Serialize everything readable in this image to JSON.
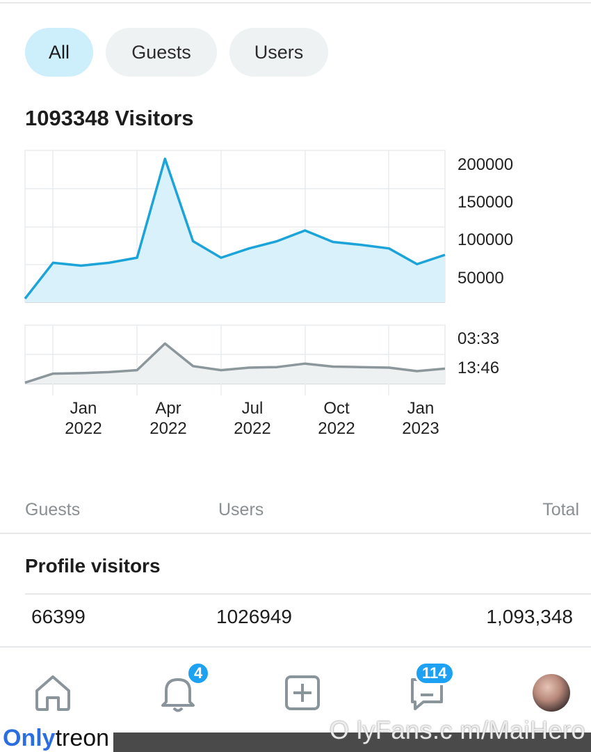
{
  "filters": {
    "all": "All",
    "guests": "Guests",
    "users": "Users",
    "active": "all"
  },
  "visitors_title": "1093348 Visitors",
  "chart_data": [
    {
      "type": "area",
      "title": "",
      "x": [
        "2021-11",
        "2021-12",
        "2022-01",
        "2022-02",
        "2022-03",
        "2022-04",
        "2022-05",
        "2022-06",
        "2022-07",
        "2022-08",
        "2022-09",
        "2022-10",
        "2022-11",
        "2022-12",
        "2023-01",
        "2023-02"
      ],
      "values": [
        5000,
        55000,
        51000,
        55000,
        62000,
        200000,
        85000,
        62000,
        75000,
        85000,
        100000,
        84000,
        80000,
        75000,
        53000,
        66000
      ],
      "ylim": [
        0,
        200000
      ],
      "yticks": [
        "200000",
        "150000",
        "100000",
        "50000"
      ],
      "grid": true,
      "color": "#1ca4d8",
      "fill": "#d9f1fb"
    },
    {
      "type": "area",
      "title": "",
      "x": [
        "2021-11",
        "2021-12",
        "2022-01",
        "2022-02",
        "2022-03",
        "2022-04",
        "2022-05",
        "2022-06",
        "2022-07",
        "2022-08",
        "2022-09",
        "2022-10",
        "2022-11",
        "2022-12",
        "2023-01",
        "2023-02"
      ],
      "values": [
        2,
        20,
        21,
        23,
        27,
        80,
        35,
        27,
        32,
        33,
        40,
        34,
        33,
        32,
        25,
        30
      ],
      "ylim": [
        0,
        100
      ],
      "yticks": [
        "03:33",
        "13:46"
      ],
      "grid": true,
      "color": "#8c979c",
      "fill": "#eef1f2"
    }
  ],
  "x_tick_labels": [
    {
      "month": "Jan",
      "year": "2022"
    },
    {
      "month": "Apr",
      "year": "2022"
    },
    {
      "month": "Jul",
      "year": "2022"
    },
    {
      "month": "Oct",
      "year": "2022"
    },
    {
      "month": "Jan",
      "year": "2023"
    }
  ],
  "table": {
    "col_guests": "Guests",
    "col_users": "Users",
    "col_total": "Total",
    "row_title": "Profile visitors",
    "guests": "66399",
    "users": "1026949",
    "total": "1,093,348"
  },
  "nav": {
    "items": [
      {
        "icon": "home-icon"
      },
      {
        "icon": "bell-icon",
        "badge": "4"
      },
      {
        "icon": "plus-square-icon"
      },
      {
        "icon": "message-icon",
        "badge": "114"
      },
      {
        "icon": "avatar"
      }
    ]
  },
  "watermark": {
    "brand_a": "Only",
    "brand_b": "treon",
    "url": "O lyFans.c m/MaiHero"
  }
}
